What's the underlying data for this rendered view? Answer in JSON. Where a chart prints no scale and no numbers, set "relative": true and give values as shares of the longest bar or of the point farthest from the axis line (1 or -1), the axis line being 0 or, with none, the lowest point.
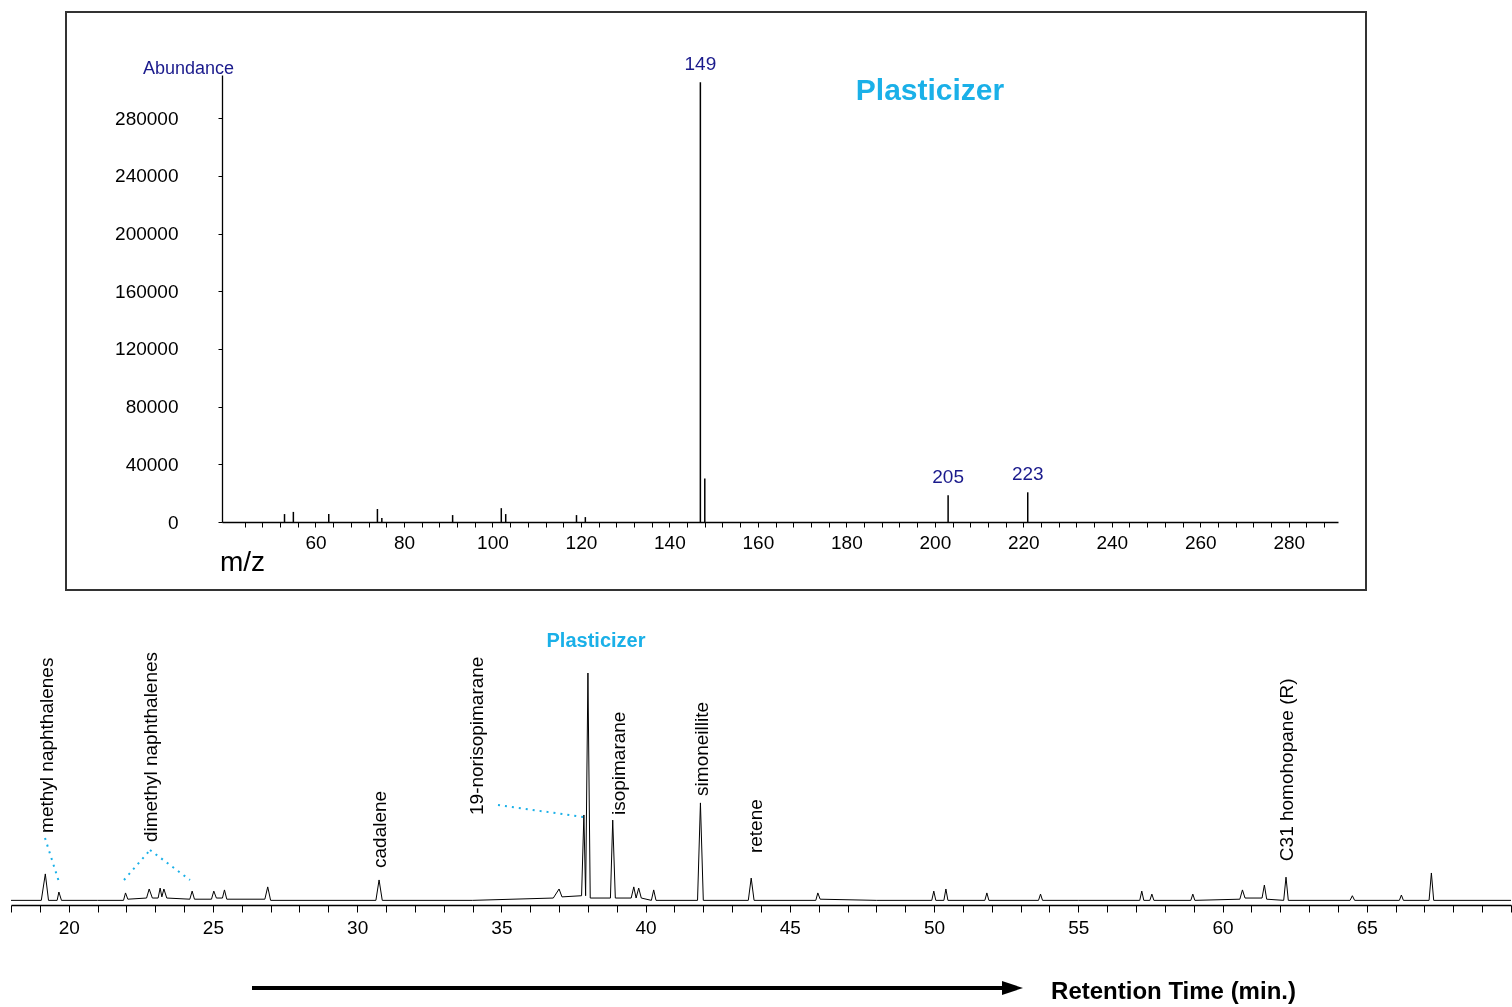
{
  "chart_data": [
    {
      "type": "bar",
      "title": "Plasticizer",
      "xlabel": "m/z",
      "ylabel": "Abundance",
      "x": [
        53,
        55,
        63,
        74,
        75,
        91,
        102,
        103,
        119,
        121,
        147,
        148,
        203,
        221
      ],
      "series": [
        {
          "color": "#000000",
          "values": [
            5500,
            7000,
            5500,
            9000,
            2700,
            4800,
            9600,
            5500,
            4800,
            3400,
            305000,
            30200,
            18500,
            20600
          ]
        }
      ],
      "xlim": [
        40,
        290
      ],
      "xticks": [
        {
          "value": 44,
          "label": null
        },
        {
          "value": 48,
          "label": null
        },
        {
          "value": 52,
          "label": null
        },
        {
          "value": 56,
          "label": null
        },
        60,
        {
          "value": 64,
          "label": null
        },
        {
          "value": 68,
          "label": null
        },
        {
          "value": 72,
          "label": null
        },
        {
          "value": 76,
          "label": null
        },
        80,
        {
          "value": 84,
          "label": null
        },
        {
          "value": 88,
          "label": null
        },
        {
          "value": 92,
          "label": null
        },
        {
          "value": 96,
          "label": null
        },
        100,
        {
          "value": 104,
          "label": null
        },
        {
          "value": 108,
          "label": null
        },
        {
          "value": 112,
          "label": null
        },
        {
          "value": 116,
          "label": null
        },
        120,
        {
          "value": 124,
          "label": null
        },
        {
          "value": 128,
          "label": null
        },
        {
          "value": 132,
          "label": null
        },
        {
          "value": 136,
          "label": null
        },
        140,
        {
          "value": 144,
          "label": null
        },
        {
          "value": 148,
          "label": null
        },
        {
          "value": 152,
          "label": null
        },
        {
          "value": 156,
          "label": null
        },
        160,
        {
          "value": 164,
          "label": null
        },
        {
          "value": 168,
          "label": null
        },
        {
          "value": 172,
          "label": null
        },
        {
          "value": 176,
          "label": null
        },
        180,
        {
          "value": 184,
          "label": null
        },
        {
          "value": 188,
          "label": null
        },
        {
          "value": 192,
          "label": null
        },
        {
          "value": 196,
          "label": null
        },
        200,
        {
          "value": 204,
          "label": null
        },
        {
          "value": 208,
          "label": null
        },
        {
          "value": 212,
          "label": null
        },
        {
          "value": 216,
          "label": null
        },
        220,
        {
          "value": 224,
          "label": null
        },
        {
          "value": 228,
          "label": null
        },
        {
          "value": 232,
          "label": null
        },
        {
          "value": 236,
          "label": null
        },
        240,
        {
          "value": 244,
          "label": null
        },
        {
          "value": 248,
          "label": null
        },
        {
          "value": 252,
          "label": null
        },
        {
          "value": 256,
          "label": null
        },
        260,
        {
          "value": 264,
          "label": null
        },
        {
          "value": 268,
          "label": null
        },
        {
          "value": 272,
          "label": null
        },
        {
          "value": 276,
          "label": null
        },
        280,
        {
          "value": 284,
          "label": null
        },
        {
          "value": 288,
          "label": null
        }
      ],
      "ylim": [
        0,
        310000
      ],
      "yticks": [
        0,
        40000,
        80000,
        120000,
        160000,
        200000,
        240000,
        280000
      ],
      "annotations": [
        {
          "text": "149",
          "x": 147,
          "y": 305000
        },
        {
          "text": "205",
          "x": 203,
          "y": 18500
        },
        {
          "text": "223",
          "x": 221,
          "y": 20600
        }
      ]
    },
    {
      "type": "line",
      "title": "Plasticizer",
      "xlabel": "Retention Time (min.)",
      "relative": true,
      "tick_labels": "x",
      "x": [
        18.0,
        19.05,
        19.19,
        19.3,
        19.6,
        19.66,
        19.75,
        21.0,
        21.9,
        21.97,
        22.05,
        22.7,
        22.79,
        22.9,
        23.1,
        23.17,
        23.23,
        23.3,
        23.4,
        24.2,
        24.28,
        24.36,
        24.95,
        25.03,
        25.12,
        25.33,
        25.4,
        25.48,
        26.8,
        26.9,
        27.0,
        30.65,
        30.76,
        30.87,
        34.0,
        36.8,
        37.0,
        37.1,
        37.78,
        37.86,
        37.92,
        38.0,
        38.08,
        38.78,
        38.86,
        38.95,
        39.5,
        39.59,
        39.67,
        39.76,
        39.85,
        40.2,
        40.28,
        40.36,
        41.8,
        41.9,
        42.0,
        43.56,
        43.66,
        43.76,
        45.9,
        45.97,
        46.05,
        48.0,
        49.92,
        49.99,
        50.06,
        50.34,
        50.41,
        50.48,
        51.76,
        51.83,
        51.9,
        53.62,
        53.69,
        53.76,
        55.0,
        57.13,
        57.2,
        57.27,
        57.48,
        57.55,
        57.62,
        58.9,
        58.97,
        59.04,
        60.6,
        60.69,
        60.78,
        61.37,
        61.45,
        61.53,
        62.12,
        62.2,
        62.28,
        64.42,
        64.5,
        64.58,
        66.13,
        66.2,
        66.27,
        67.16,
        67.24,
        67.32,
        70.0
      ],
      "series": [
        {
          "color": "#000000",
          "values": [
            0.02,
            0.02,
            0.134,
            0.02,
            0.02,
            0.056,
            0.02,
            0.02,
            0.02,
            0.052,
            0.025,
            0.03,
            0.069,
            0.03,
            0.03,
            0.073,
            0.035,
            0.069,
            0.03,
            0.025,
            0.06,
            0.025,
            0.025,
            0.06,
            0.03,
            0.03,
            0.065,
            0.025,
            0.025,
            0.078,
            0.02,
            0.02,
            0.108,
            0.02,
            0.02,
            0.03,
            0.069,
            0.035,
            0.04,
            0.388,
            0.04,
            1.0,
            0.03,
            0.03,
            0.366,
            0.03,
            0.03,
            0.078,
            0.03,
            0.073,
            0.03,
            0.02,
            0.065,
            0.02,
            0.02,
            0.44,
            0.02,
            0.02,
            0.116,
            0.02,
            0.02,
            0.052,
            0.025,
            0.02,
            0.02,
            0.06,
            0.02,
            0.02,
            0.069,
            0.02,
            0.02,
            0.052,
            0.02,
            0.02,
            0.047,
            0.02,
            0.02,
            0.02,
            0.06,
            0.02,
            0.02,
            0.047,
            0.02,
            0.02,
            0.047,
            0.02,
            0.025,
            0.065,
            0.03,
            0.03,
            0.086,
            0.025,
            0.02,
            0.12,
            0.02,
            0.02,
            0.04,
            0.02,
            0.02,
            0.043,
            0.02,
            0.02,
            0.138,
            0.02,
            0.02
          ]
        }
      ],
      "xlim": [
        18,
        70
      ],
      "xticks": [
        {
          "value": 18,
          "label": null
        },
        {
          "value": 19,
          "label": null
        },
        20,
        {
          "value": 21,
          "label": null
        },
        {
          "value": 22,
          "label": null
        },
        {
          "value": 23,
          "label": null
        },
        {
          "value": 24,
          "label": null
        },
        25,
        {
          "value": 26,
          "label": null
        },
        {
          "value": 27,
          "label": null
        },
        {
          "value": 28,
          "label": null
        },
        {
          "value": 29,
          "label": null
        },
        30,
        {
          "value": 31,
          "label": null
        },
        {
          "value": 32,
          "label": null
        },
        {
          "value": 33,
          "label": null
        },
        {
          "value": 34,
          "label": null
        },
        35,
        {
          "value": 36,
          "label": null
        },
        {
          "value": 37,
          "label": null
        },
        {
          "value": 38,
          "label": null
        },
        {
          "value": 39,
          "label": null
        },
        40,
        {
          "value": 41,
          "label": null
        },
        {
          "value": 42,
          "label": null
        },
        {
          "value": 43,
          "label": null
        },
        {
          "value": 44,
          "label": null
        },
        45,
        {
          "value": 46,
          "label": null
        },
        {
          "value": 47,
          "label": null
        },
        {
          "value": 48,
          "label": null
        },
        {
          "value": 49,
          "label": null
        },
        50,
        {
          "value": 51,
          "label": null
        },
        {
          "value": 52,
          "label": null
        },
        {
          "value": 53,
          "label": null
        },
        {
          "value": 54,
          "label": null
        },
        55,
        {
          "value": 56,
          "label": null
        },
        {
          "value": 57,
          "label": null
        },
        {
          "value": 58,
          "label": null
        },
        {
          "value": 59,
          "label": null
        },
        60,
        {
          "value": 61,
          "label": null
        },
        {
          "value": 62,
          "label": null
        },
        {
          "value": 63,
          "label": null
        },
        {
          "value": 64,
          "label": null
        },
        65,
        {
          "value": 66,
          "label": null
        },
        {
          "value": 67,
          "label": null
        },
        {
          "value": 68,
          "label": null
        },
        {
          "value": 69,
          "label": null
        },
        {
          "value": 70,
          "label": null
        }
      ],
      "annotations": [
        {
          "text": "methyl naphthalenes",
          "x": 19.19,
          "y": 0.134
        },
        {
          "text": "dimethyl naphthalenes",
          "x": 23.17,
          "y": 0.073
        },
        {
          "text": "cadalene",
          "x": 30.76,
          "y": 0.108
        },
        {
          "text": "19-norisopimarane",
          "x": 37.86,
          "y": 0.388
        },
        {
          "text": "isopimarane",
          "x": 38.86,
          "y": 0.366
        },
        {
          "text": "simoneillite",
          "x": 41.9,
          "y": 0.44
        },
        {
          "text": "retene",
          "x": 43.66,
          "y": 0.116
        },
        {
          "text": "C31 homohopane (R)",
          "x": 62.2,
          "y": 0.12
        }
      ]
    }
  ]
}
